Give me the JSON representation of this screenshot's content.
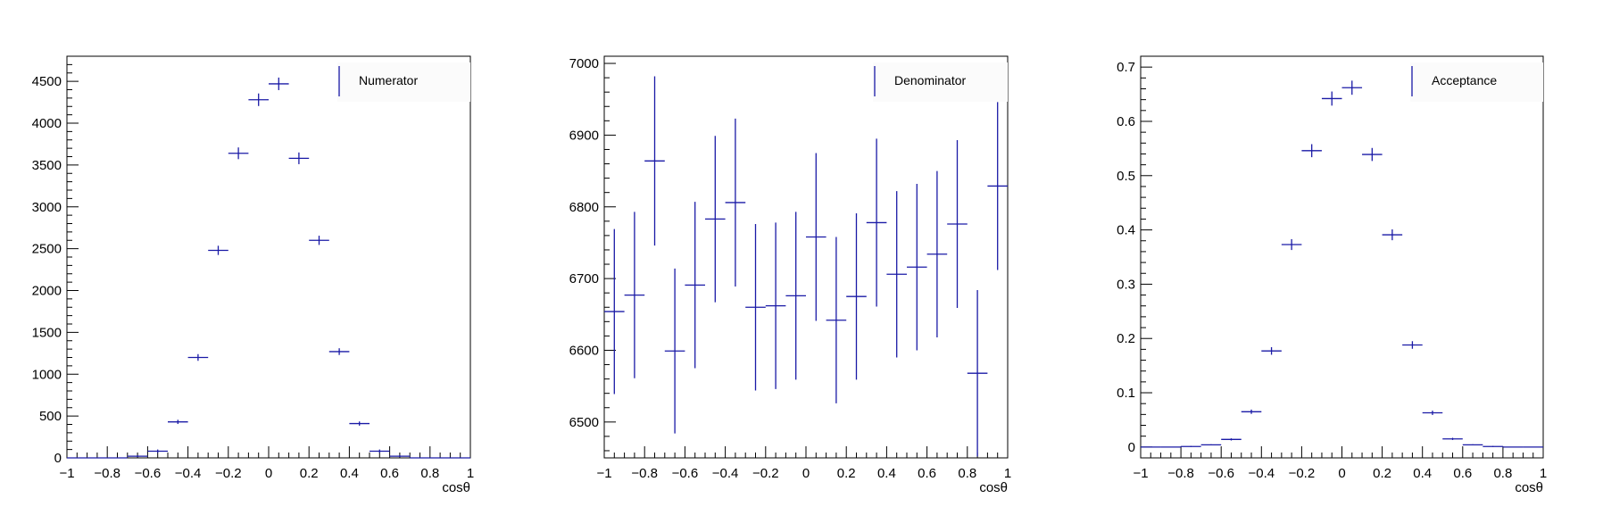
{
  "chart_data": [
    {
      "type": "scatter",
      "style": "histogram-errorbars",
      "xlabel": "cosθ",
      "ylabel": "",
      "xlim": [
        -1,
        1
      ],
      "ylim": [
        0,
        4800
      ],
      "x_ticks": [
        -1,
        -0.8,
        -0.6,
        -0.4,
        -0.2,
        0,
        0.2,
        0.4,
        0.6,
        0.8,
        1
      ],
      "x_tick_labels": [
        "−1",
        "−0.8",
        "−0.6",
        "−0.4",
        "−0.2",
        "0",
        "0.2",
        "0.4",
        "0.6",
        "0.8",
        "1"
      ],
      "y_ticks": [
        0,
        500,
        1000,
        1500,
        2000,
        2500,
        3000,
        3500,
        4000,
        4500
      ],
      "y_tick_labels": [
        "0",
        "500",
        "1000",
        "1500",
        "2000",
        "2500",
        "3000",
        "3500",
        "4000",
        "4500"
      ],
      "legend": {
        "label": "Numerator",
        "position": "top-right"
      },
      "color": "#1a1aa6",
      "grid": false,
      "series": [
        {
          "name": "Numerator",
          "x": [
            -0.95,
            -0.85,
            -0.75,
            -0.65,
            -0.55,
            -0.45,
            -0.35,
            -0.25,
            -0.15,
            -0.05,
            0.05,
            0.15,
            0.25,
            0.35,
            0.45,
            0.55,
            0.65,
            0.75,
            0.85,
            0.95
          ],
          "x_err": 0.05,
          "y": [
            0,
            0,
            0,
            20,
            80,
            430,
            1200,
            2480,
            3640,
            4280,
            4470,
            3580,
            2600,
            1270,
            410,
            80,
            20,
            0,
            0,
            0
          ],
          "y_err": [
            0,
            0,
            0,
            10,
            20,
            25,
            40,
            55,
            70,
            75,
            75,
            70,
            55,
            40,
            25,
            20,
            10,
            0,
            0,
            0
          ]
        }
      ]
    },
    {
      "type": "scatter",
      "style": "histogram-errorbars",
      "xlabel": "cosθ",
      "ylabel": "",
      "xlim": [
        -1,
        1
      ],
      "ylim": [
        6450,
        7010
      ],
      "x_ticks": [
        -1,
        -0.8,
        -0.6,
        -0.4,
        -0.2,
        0,
        0.2,
        0.4,
        0.6,
        0.8,
        1
      ],
      "x_tick_labels": [
        "−1",
        "−0.8",
        "−0.6",
        "−0.4",
        "−0.2",
        "0",
        "0.2",
        "0.4",
        "0.6",
        "0.8",
        "1"
      ],
      "y_ticks": [
        6500,
        6600,
        6700,
        6800,
        6900,
        7000
      ],
      "y_tick_labels": [
        "6500",
        "6600",
        "6700",
        "6800",
        "6900",
        "7000"
      ],
      "legend": {
        "label": "Denominator",
        "position": "top-right"
      },
      "color": "#1a1aa6",
      "grid": false,
      "series": [
        {
          "name": "Denominator",
          "x": [
            -0.95,
            -0.85,
            -0.75,
            -0.65,
            -0.55,
            -0.45,
            -0.35,
            -0.25,
            -0.15,
            -0.05,
            0.05,
            0.15,
            0.25,
            0.35,
            0.45,
            0.55,
            0.65,
            0.75,
            0.85,
            0.95
          ],
          "x_err": 0.05,
          "y": [
            6654,
            6677,
            6864,
            6599,
            6691,
            6783,
            6806,
            6660,
            6662,
            6676,
            6758,
            6642,
            6675,
            6778,
            6706,
            6716,
            6734,
            6776,
            6568,
            6829
          ],
          "y_err": [
            115,
            116,
            118,
            115,
            116,
            116,
            117,
            116,
            116,
            117,
            117,
            116,
            116,
            117,
            116,
            116,
            116,
            117,
            116,
            117
          ]
        }
      ]
    },
    {
      "type": "scatter",
      "style": "histogram-errorbars",
      "xlabel": "cosθ",
      "ylabel": "",
      "xlim": [
        -1,
        1
      ],
      "ylim": [
        -0.02,
        0.72
      ],
      "x_ticks": [
        -1,
        -0.8,
        -0.6,
        -0.4,
        -0.2,
        0,
        0.2,
        0.4,
        0.6,
        0.8,
        1
      ],
      "x_tick_labels": [
        "−1",
        "−0.8",
        "−0.6",
        "−0.4",
        "−0.2",
        "0",
        "0.2",
        "0.4",
        "0.6",
        "0.8",
        "1"
      ],
      "y_ticks": [
        0,
        0.1,
        0.2,
        0.3,
        0.4,
        0.5,
        0.6,
        0.7
      ],
      "y_tick_labels": [
        "0",
        "0.1",
        "0.2",
        "0.3",
        "0.4",
        "0.5",
        "0.6",
        "0.7"
      ],
      "legend": {
        "label": "Acceptance",
        "position": "top-right"
      },
      "color": "#1a1aa6",
      "grid": false,
      "series": [
        {
          "name": "Acceptance",
          "x": [
            -0.95,
            -0.85,
            -0.75,
            -0.65,
            -0.55,
            -0.45,
            -0.35,
            -0.25,
            -0.15,
            -0.05,
            0.05,
            0.15,
            0.25,
            0.35,
            0.45,
            0.55,
            0.65,
            0.75,
            0.85,
            0.95
          ],
          "x_err": 0.05,
          "y": [
            0,
            0,
            0.001,
            0.004,
            0.014,
            0.065,
            0.177,
            0.373,
            0.546,
            0.642,
            0.662,
            0.539,
            0.391,
            0.188,
            0.063,
            0.015,
            0.004,
            0.001,
            0,
            0
          ],
          "y_err": [
            0,
            0,
            0.001,
            0.001,
            0.002,
            0.004,
            0.007,
            0.01,
            0.012,
            0.013,
            0.013,
            0.012,
            0.01,
            0.007,
            0.004,
            0.002,
            0.001,
            0.001,
            0,
            0
          ]
        }
      ]
    }
  ]
}
